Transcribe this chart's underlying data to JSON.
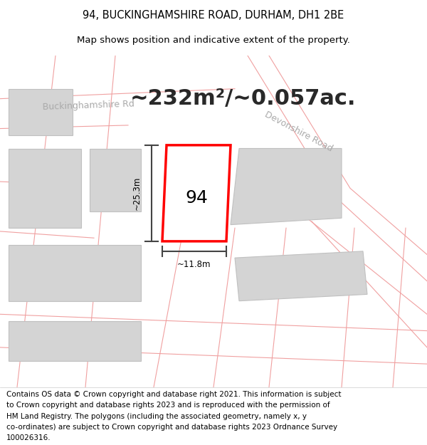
{
  "title_line1": "94, BUCKINGHAMSHIRE ROAD, DURHAM, DH1 2BE",
  "title_line2": "Map shows position and indicative extent of the property.",
  "area_text": "~232m²/~0.057ac.",
  "label_94": "94",
  "dim_width": "~11.8m",
  "dim_height": "~25.3m",
  "street_buckinghamshire": "Buckinghamshire Rd",
  "street_devonshire": "Devonshire Road",
  "footer_lines": [
    "Contains OS data © Crown copyright and database right 2021. This information is subject",
    "to Crown copyright and database rights 2023 and is reproduced with the permission of",
    "HM Land Registry. The polygons (including the associated geometry, namely x, y",
    "co-ordinates) are subject to Crown copyright and database rights 2023 Ordnance Survey",
    "100026316."
  ],
  "map_bg": "#f0eded",
  "building_fill": "#d4d4d4",
  "building_edge": "#c0c0c0",
  "plot_fill": "#ffffff",
  "plot_edge": "#ff0000",
  "road_line_color": "#f0a0a0",
  "dim_line_color": "#444444",
  "title_fontsize": 10.5,
  "subtitle_fontsize": 9.5,
  "area_fontsize": 22,
  "label_fontsize": 18,
  "street_fontsize": 9,
  "footer_fontsize": 7.5
}
